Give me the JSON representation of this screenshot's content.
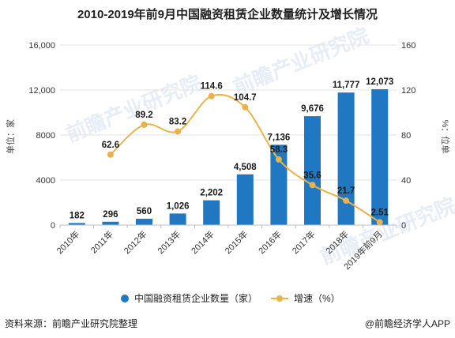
{
  "chart_data": {
    "type": "bar",
    "title": "2010-2019年前9月中国融资租赁企业数量统计及增长情况",
    "categories": [
      "2010年",
      "2011年",
      "2012年",
      "2013年",
      "2014年",
      "2015年",
      "2016年",
      "2017年",
      "2018年",
      "2019年前9月"
    ],
    "series": [
      {
        "name": "中国融资租赁企业数量（家）",
        "type": "bar",
        "axis": "left",
        "color": "#1f78c1",
        "values": [
          182,
          296,
          560,
          1026,
          2202,
          4508,
          7136,
          9676,
          11777,
          12073
        ],
        "labels": [
          "182",
          "296",
          "560",
          "1,026",
          "2,202",
          "4,508",
          "7,136",
          "9,676",
          "11,777",
          "12,073"
        ]
      },
      {
        "name": "增速（%）",
        "type": "line",
        "axis": "right",
        "color": "#e8b44a",
        "values": [
          null,
          62.6,
          89.2,
          83.2,
          114.6,
          104.7,
          58.3,
          35.6,
          21.7,
          2.51
        ],
        "labels": [
          "",
          "62.6",
          "89.2",
          "83.2",
          "114.6",
          "104.7",
          "58.3",
          "35.6",
          "21.7",
          "2.51"
        ]
      }
    ],
    "ylabel_left": "单位：家",
    "ylabel_right": "%：位单",
    "ylim_left": [
      0,
      16000
    ],
    "yticks_left": [
      "0",
      "4000",
      "8000",
      "12,000",
      "16,000"
    ],
    "ylim_right": [
      0,
      160
    ],
    "yticks_right": [
      "0",
      "40",
      "80",
      "120",
      "160"
    ],
    "grid": true,
    "legend_position": "bottom"
  },
  "footer": {
    "source": "资料来源：前瞻产业研究院整理",
    "brand": "@前瞻经济学人APP"
  },
  "watermark": "前瞻产业研究院"
}
